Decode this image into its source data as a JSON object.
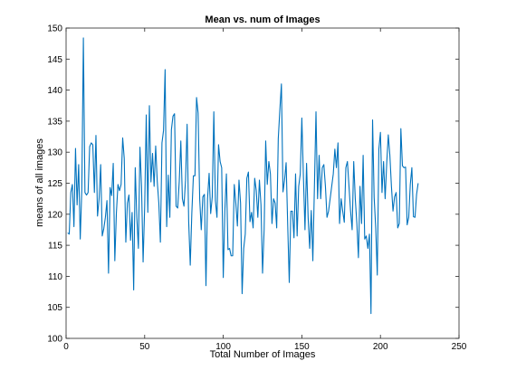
{
  "chart_data": {
    "type": "line",
    "title": "Mean vs. num of Images",
    "xlabel": "Total Number of Images",
    "ylabel": "means of all images",
    "xlim": [
      0,
      250
    ],
    "ylim": [
      100,
      150
    ],
    "xticks": [
      0,
      50,
      100,
      150,
      200,
      250
    ],
    "yticks": [
      100,
      105,
      110,
      115,
      120,
      125,
      130,
      135,
      140,
      145,
      150
    ],
    "grid": false,
    "legend": "none",
    "line_color": "#0072BD",
    "series": [
      {
        "x_start": 1,
        "x_step": 1,
        "values": [
          117,
          116.8,
          123.5,
          124.8,
          118,
          130.6,
          121.5,
          128,
          116,
          124,
          148.4,
          123.5,
          123.1,
          123.5,
          130.9,
          131.5,
          131.2,
          123.5,
          132.7,
          119.7,
          122.5,
          128,
          116.5,
          117.7,
          119.5,
          122.2,
          110.5,
          124.3,
          123,
          128.2,
          112.5,
          120.2,
          124.8,
          123.8,
          124.8,
          132.3,
          129,
          115.5,
          121.8,
          123.1,
          115.8,
          120.3,
          107.8,
          127.5,
          119.5,
          114.5,
          130.8,
          124.5,
          112.3,
          121.2,
          136,
          120.3,
          137.5,
          125.2,
          129.8,
          124.5,
          131,
          125.3,
          121.8,
          115.5,
          131.5,
          133.5,
          143.3,
          118,
          126.3,
          119.5,
          133.6,
          135.8,
          136.2,
          121.3,
          121,
          125.3,
          131.8,
          122.5,
          121.3,
          125.5,
          134.5,
          118.8,
          111.8,
          120.2,
          126.2,
          126.2,
          138.8,
          136.3,
          122.5,
          117.5,
          122.8,
          123.2,
          108.5,
          122.5,
          126.6,
          120.1,
          122.8,
          136.5,
          122.2,
          119.5,
          131.2,
          128.5,
          127.5,
          109.8,
          120.5,
          126.5,
          114.3,
          114.5,
          113.3,
          113.3,
          124.8,
          121.8,
          118.1,
          125.5,
          121.8,
          107.2,
          114.5,
          116.8,
          125.8,
          126.8,
          118.8,
          120.3,
          117.8,
          125.8,
          123.8,
          119.5,
          125.5,
          121.5,
          110.5,
          117.5,
          131.8,
          124.8,
          128.5,
          126.5,
          118.5,
          122.5,
          121.8,
          117.8,
          132.2,
          136.8,
          141,
          123.6,
          125.5,
          128.3,
          118.3,
          109,
          120.5,
          120.5,
          116.2,
          126.5,
          116.5,
          124.5,
          126.5,
          135.5,
          126,
          117.5,
          128.2,
          119.5,
          114.5,
          120.6,
          112.5,
          124.5,
          136.5,
          122.5,
          129.5,
          122.5,
          127.5,
          128,
          124.5,
          119.5,
          120.5,
          122.5,
          124.5,
          126.5,
          130.5,
          127.5,
          131.5,
          118.5,
          122.5,
          120.5,
          118.7,
          127.5,
          128.5,
          124.5,
          120.5,
          117.5,
          128.5,
          122.5,
          118.5,
          113,
          124.5,
          118.5,
          129.5,
          116,
          116.5,
          114.5,
          116.8,
          104,
          135.2,
          122.7,
          117.8,
          110.2,
          130.5,
          133.2,
          123.5,
          128.5,
          122.5,
          128.2,
          132.8,
          129.5,
          124.5,
          120.5,
          122.8,
          123.5,
          117.8,
          118.5,
          133.8,
          127.8,
          127.5,
          127.6,
          118.3,
          119.5,
          124.8,
          127.5,
          119.6,
          119.5,
          123.2,
          125
        ]
      }
    ]
  }
}
